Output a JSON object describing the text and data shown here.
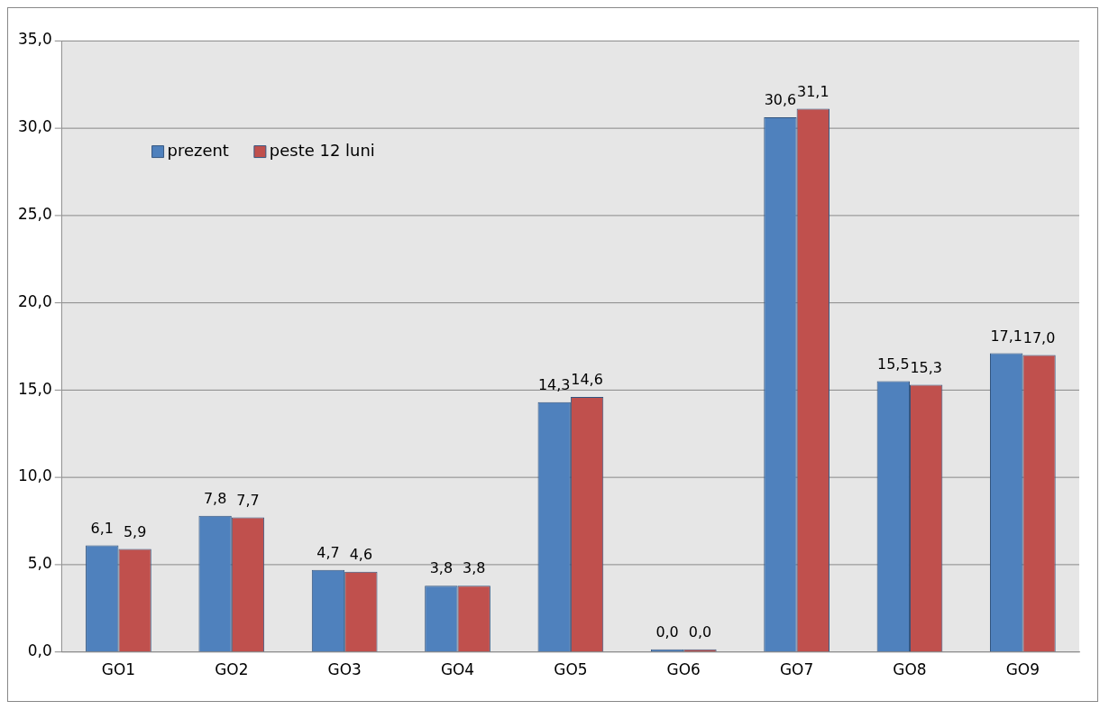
{
  "chart_data": {
    "type": "bar",
    "categories": [
      "GO1",
      "GO2",
      "GO3",
      "GO4",
      "GO5",
      "GO6",
      "GO7",
      "GO8",
      "GO9"
    ],
    "series": [
      {
        "name": "prezent",
        "color": "#4f81bd",
        "values": [
          6.1,
          7.8,
          4.7,
          3.8,
          14.3,
          0.0,
          30.6,
          15.5,
          17.1
        ],
        "value_labels": [
          "6,1",
          "7,8",
          "4,7",
          "3,8",
          "14,3",
          "0,0",
          "30,6",
          "15,5",
          "17,1"
        ]
      },
      {
        "name": "peste 12 luni",
        "color": "#c0504d",
        "values": [
          5.9,
          7.7,
          4.6,
          3.8,
          14.6,
          0.0,
          31.1,
          15.3,
          17.0
        ],
        "value_labels": [
          "5,9",
          "7,7",
          "4,6",
          "3,8",
          "14,6",
          "0,0",
          "31,1",
          "15,3",
          "17,0"
        ]
      }
    ],
    "ylim": [
      0,
      35
    ],
    "yticks": [
      {
        "value": 0,
        "label": "0,0"
      },
      {
        "value": 5,
        "label": "5,0"
      },
      {
        "value": 10,
        "label": "10,0"
      },
      {
        "value": 15,
        "label": "15,0"
      },
      {
        "value": 20,
        "label": "20,0"
      },
      {
        "value": 25,
        "label": "25,0"
      },
      {
        "value": 30,
        "label": "30,0"
      },
      {
        "value": 35,
        "label": "35,0"
      }
    ],
    "grid": "y",
    "legend": "top left"
  }
}
